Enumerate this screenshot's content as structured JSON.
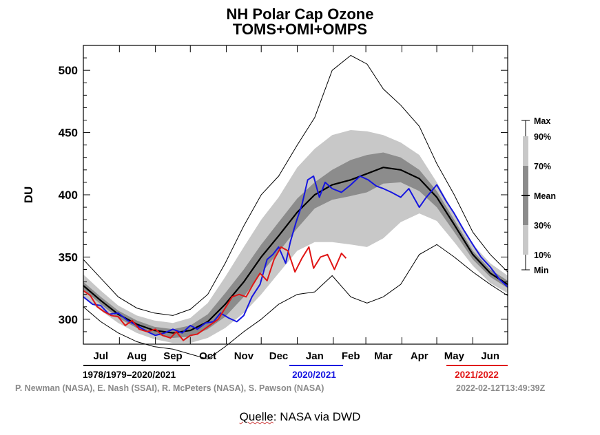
{
  "chart_data": {
    "type": "line",
    "title": "NH Polar Cap Ozone",
    "subtitle": "TOMS+OMI+OMPS",
    "ylabel": "DU",
    "ylim": [
      280,
      520
    ],
    "yticks": [
      300,
      350,
      400,
      450,
      500
    ],
    "x_range": [
      0,
      365
    ],
    "months": [
      {
        "label": "Jul",
        "day": 15
      },
      {
        "label": "Aug",
        "day": 46
      },
      {
        "label": "Sep",
        "day": 77
      },
      {
        "label": "Oct",
        "day": 107
      },
      {
        "label": "Nov",
        "day": 138
      },
      {
        "label": "Dec",
        "day": 168
      },
      {
        "label": "Jan",
        "day": 199
      },
      {
        "label": "Feb",
        "day": 230
      },
      {
        "label": "Mar",
        "day": 258
      },
      {
        "label": "Apr",
        "day": 289
      },
      {
        "label": "May",
        "day": 319
      },
      {
        "label": "Jun",
        "day": 350
      }
    ],
    "legend_right": [
      "Max",
      "90%",
      "70%",
      "Mean",
      "30%",
      "10%",
      "Min"
    ],
    "legend_bottom": [
      {
        "label": "1978/1979–2020/2021",
        "color": "#000000"
      },
      {
        "label": "2020/2021",
        "color": "#1515e0"
      },
      {
        "label": "2021/2022",
        "color": "#e01515"
      }
    ],
    "stats": {
      "x": [
        0,
        15,
        30,
        46,
        61,
        77,
        92,
        107,
        122,
        138,
        153,
        168,
        184,
        199,
        214,
        230,
        244,
        258,
        273,
        289,
        304,
        319,
        335,
        350,
        365
      ],
      "max": [
        348,
        333,
        318,
        309,
        305,
        303,
        308,
        320,
        345,
        375,
        400,
        415,
        440,
        462,
        500,
        512,
        505,
        485,
        472,
        455,
        425,
        400,
        370,
        352,
        338
      ],
      "p90": [
        336,
        323,
        311,
        303,
        299,
        297,
        301,
        313,
        334,
        358,
        380,
        398,
        422,
        437,
        448,
        452,
        451,
        448,
        442,
        432,
        410,
        385,
        360,
        345,
        335
      ],
      "p70": [
        330,
        318,
        307,
        299,
        294,
        292,
        295,
        304,
        321,
        340,
        360,
        378,
        397,
        410,
        420,
        428,
        432,
        434,
        430,
        420,
        403,
        380,
        355,
        340,
        331
      ],
      "mean": [
        327,
        315,
        304,
        296,
        291,
        289,
        291,
        298,
        312,
        330,
        350,
        367,
        386,
        400,
        408,
        412,
        417,
        422,
        420,
        413,
        398,
        376,
        352,
        337,
        328
      ],
      "p30": [
        324,
        312,
        301,
        293,
        288,
        285,
        286,
        292,
        302,
        318,
        337,
        354,
        373,
        389,
        396,
        399,
        402,
        409,
        410,
        403,
        390,
        370,
        348,
        334,
        325
      ],
      "p10": [
        318,
        307,
        297,
        289,
        284,
        281,
        281,
        285,
        293,
        305,
        320,
        337,
        355,
        362,
        362,
        360,
        358,
        365,
        378,
        385,
        379,
        362,
        343,
        329,
        321
      ],
      "min": [
        310,
        298,
        289,
        282,
        278,
        276,
        272,
        268,
        278,
        290,
        300,
        312,
        320,
        322,
        335,
        318,
        313,
        318,
        328,
        352,
        360,
        350,
        338,
        328,
        319
      ]
    },
    "series": [
      {
        "name": "2020/2021",
        "color": "#1515e0",
        "x": [
          0,
          8,
          15,
          22,
          30,
          38,
          46,
          55,
          62,
          70,
          77,
          85,
          92,
          98,
          105,
          112,
          118,
          125,
          132,
          138,
          145,
          152,
          158,
          163,
          168,
          174,
          178,
          183,
          188,
          193,
          198,
          203,
          208,
          214,
          222,
          230,
          238,
          245,
          252,
          258,
          265,
          273,
          280,
          289,
          295,
          304,
          312,
          319,
          327,
          335,
          342,
          350,
          358,
          365
        ],
        "y": [
          318,
          312,
          311,
          304,
          305,
          299,
          295,
          290,
          287,
          289,
          292,
          289,
          295,
          292,
          297,
          298,
          305,
          301,
          298,
          303,
          318,
          328,
          348,
          352,
          358,
          345,
          362,
          378,
          392,
          412,
          415,
          398,
          410,
          405,
          402,
          408,
          415,
          412,
          407,
          405,
          402,
          398,
          405,
          390,
          398,
          408,
          395,
          385,
          372,
          360,
          350,
          342,
          332,
          326
        ]
      },
      {
        "name": "2021/2022",
        "color": "#e01515",
        "x": [
          0,
          6,
          12,
          18,
          24,
          30,
          36,
          42,
          48,
          55,
          62,
          68,
          75,
          80,
          86,
          92,
          98,
          104,
          110,
          116,
          122,
          128,
          134,
          140,
          146,
          152,
          158,
          164,
          170,
          176,
          182,
          188,
          194,
          198,
          204,
          210,
          216,
          222,
          226
        ],
        "y": [
          323,
          319,
          310,
          306,
          303,
          302,
          295,
          299,
          292,
          290,
          292,
          287,
          285,
          290,
          283,
          287,
          288,
          292,
          296,
          300,
          309,
          318,
          320,
          318,
          328,
          337,
          331,
          348,
          358,
          355,
          338,
          349,
          358,
          341,
          350,
          352,
          340,
          353,
          349
        ]
      }
    ]
  },
  "credits": {
    "left": "P. Newman (NASA), E. Nash (SSAI), R. McPeters (NASA), S. Pawson (NASA)",
    "right": "2022-02-12T13:49:39Z"
  },
  "source": {
    "prefix": "Quelle",
    "suffix": ": NASA via DWD"
  }
}
